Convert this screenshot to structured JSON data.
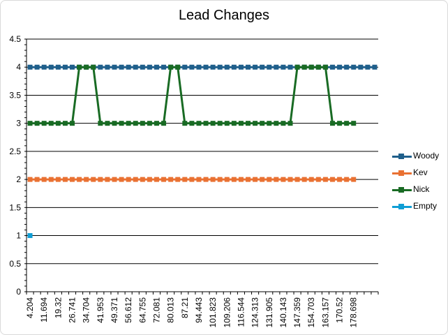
{
  "chart_data": {
    "type": "line",
    "title": "Lead Changes",
    "xlabel": "",
    "ylabel": "",
    "ylim": [
      0,
      4.5
    ],
    "yticks": [
      "0",
      "0.5",
      "1",
      "1.5",
      "2",
      "2.5",
      "3",
      "3.5",
      "4",
      "4.5"
    ],
    "x_tick_labels": [
      "4.204",
      "11.694",
      "19.32",
      "26.741",
      "34.704",
      "41.953",
      "49.371",
      "56.612",
      "64.755",
      "72.081",
      "80.013",
      "87.21",
      "94.443",
      "101.823",
      "109.206",
      "116.544",
      "124.313",
      "131.905",
      "140.143",
      "147.359",
      "154.703",
      "163.157",
      "170.52",
      "178.698"
    ],
    "grid": "horizontal",
    "legend_position": "right",
    "series": [
      {
        "name": "Woody",
        "color": "#1f5f8b",
        "values": [
          4,
          4,
          4,
          4,
          4,
          4,
          4,
          4,
          4,
          4,
          4,
          4,
          4,
          4,
          4,
          4,
          4,
          4,
          4,
          4,
          4,
          4,
          4,
          4,
          4,
          4,
          4,
          4,
          4,
          4,
          4,
          4,
          4,
          4,
          4,
          4,
          4,
          4,
          4,
          4,
          4,
          4,
          4,
          4,
          4,
          4,
          4,
          4,
          4,
          4
        ]
      },
      {
        "name": "Kev",
        "color": "#e97132",
        "values": [
          2,
          2,
          2,
          2,
          2,
          2,
          2,
          2,
          2,
          2,
          2,
          2,
          2,
          2,
          2,
          2,
          2,
          2,
          2,
          2,
          2,
          2,
          2,
          2,
          2,
          2,
          2,
          2,
          2,
          2,
          2,
          2,
          2,
          2,
          2,
          2,
          2,
          2,
          2,
          2,
          2,
          2,
          2,
          2,
          2,
          2,
          2
        ]
      },
      {
        "name": "Nick",
        "color": "#196b24",
        "values": [
          3,
          3,
          3,
          3,
          3,
          3,
          3,
          4,
          4,
          4,
          3,
          3,
          3,
          3,
          3,
          3,
          3,
          3,
          3,
          3,
          4,
          4,
          3,
          3,
          3,
          3,
          3,
          3,
          3,
          3,
          3,
          3,
          3,
          3,
          3,
          3,
          3,
          3,
          4,
          4,
          4,
          4,
          4,
          3,
          3,
          3,
          3
        ]
      },
      {
        "name": "Empty",
        "color": "#0f9ed5",
        "values": [
          1
        ]
      }
    ]
  }
}
